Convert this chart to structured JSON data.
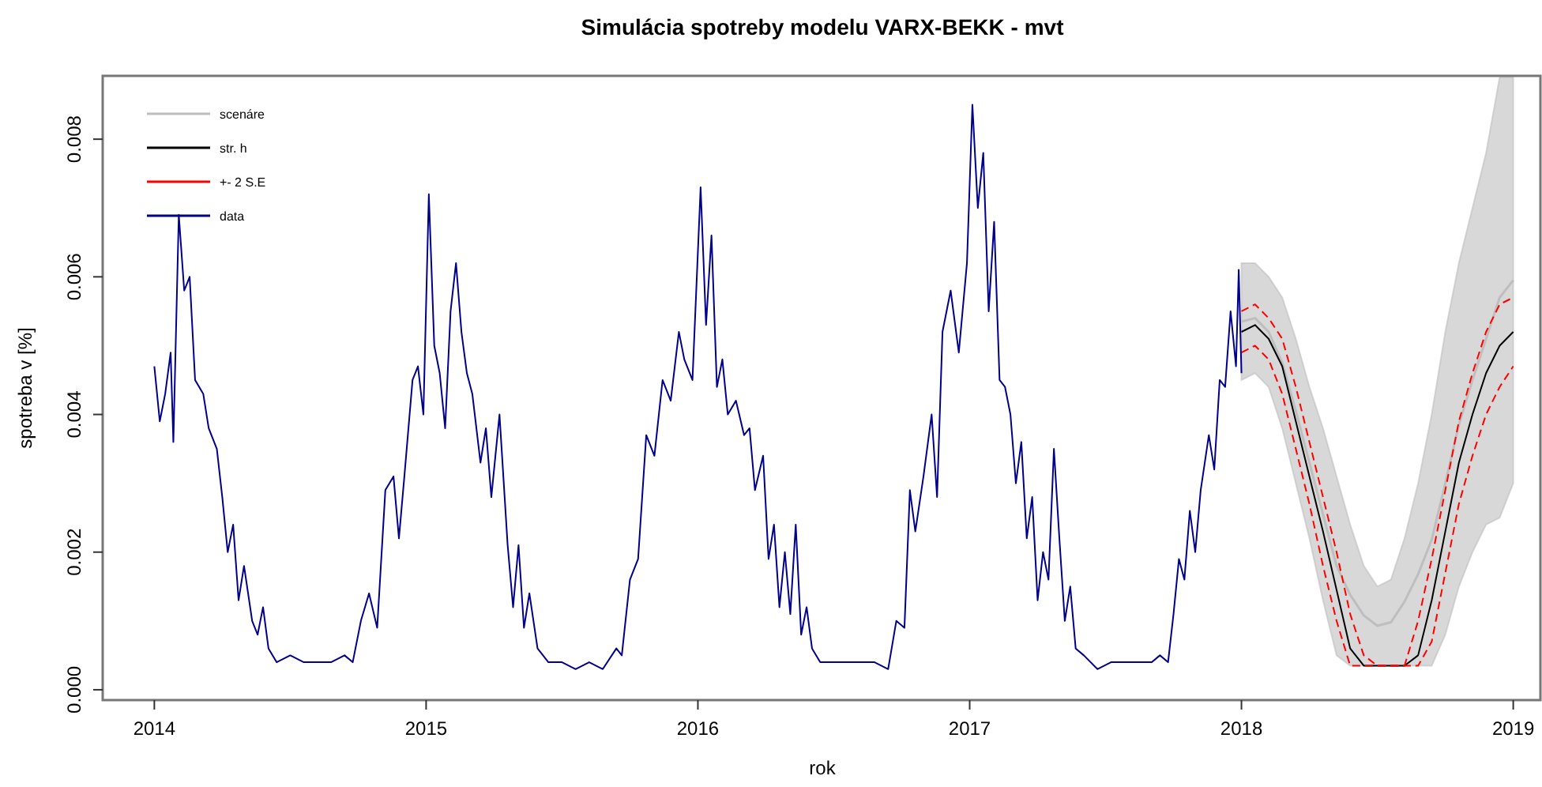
{
  "chart_data": {
    "type": "line",
    "title": "Simulácia spotreby modelu VARX-BEKK - mvt",
    "xlabel": "rok",
    "ylabel": "spotreba v [%]",
    "xlim": [
      2013.81,
      2019.1
    ],
    "xticks": [
      2014,
      2015,
      2016,
      2017,
      2018,
      2019
    ],
    "ylim": [
      -0.00015,
      0.00892
    ],
    "yticks": [
      {
        "value": 0,
        "label": "0.000"
      },
      {
        "value": 0.002,
        "label": "0.002"
      },
      {
        "value": 0.004,
        "label": "0.004"
      },
      {
        "value": 0.006,
        "label": "0.006"
      },
      {
        "value": 0.008,
        "label": "0.008"
      }
    ],
    "legend": "top left",
    "grid": false,
    "series": [
      {
        "name": "scenáre",
        "color": "#bebebe",
        "x": [
          2018.0,
          2018.05,
          2018.1,
          2018.15,
          2018.2,
          2018.25,
          2018.3,
          2018.35,
          2018.4,
          2018.45,
          2018.5,
          2018.55,
          2018.6,
          2018.65,
          2018.7,
          2018.75,
          2018.8,
          2018.85,
          2018.9,
          2018.95,
          2019.0
        ],
        "values": [
          0.00535,
          0.0054,
          0.0052,
          0.00475,
          0.00405,
          0.0033,
          0.00255,
          0.0018,
          0.00138,
          0.00108,
          0.00093,
          0.00098,
          0.00128,
          0.00168,
          0.00218,
          0.003,
          0.00385,
          0.0045,
          0.0051,
          0.0057,
          0.00595
        ],
        "lower": [
          0.0045,
          0.0046,
          0.0044,
          0.0038,
          0.003,
          0.0022,
          0.0013,
          0.0005,
          0.00035,
          0.00035,
          0.00035,
          0.00035,
          0.00035,
          0.00035,
          0.00035,
          0.0008,
          0.0015,
          0.002,
          0.0024,
          0.0025,
          0.003
        ],
        "upper": [
          0.0062,
          0.0062,
          0.006,
          0.0057,
          0.0051,
          0.0044,
          0.0038,
          0.0031,
          0.0024,
          0.0018,
          0.0015,
          0.0016,
          0.0022,
          0.003,
          0.004,
          0.0052,
          0.0062,
          0.007,
          0.0078,
          0.0089,
          0.0089
        ]
      },
      {
        "name": "str. h",
        "color": "#000000",
        "x": [
          2018.0,
          2018.05,
          2018.1,
          2018.15,
          2018.2,
          2018.25,
          2018.3,
          2018.35,
          2018.4,
          2018.45,
          2018.5,
          2018.55,
          2018.6,
          2018.65,
          2018.7,
          2018.75,
          2018.8,
          2018.85,
          2018.9,
          2018.95,
          2019.0
        ],
        "values": [
          0.0052,
          0.0053,
          0.0051,
          0.0047,
          0.0039,
          0.0031,
          0.0023,
          0.00145,
          0.0006,
          0.00035,
          0.00035,
          0.00035,
          0.00035,
          0.0005,
          0.0013,
          0.0023,
          0.0033,
          0.004,
          0.0046,
          0.005,
          0.0052
        ]
      },
      {
        "name": "+- 2 S.E",
        "color": "#ff0000",
        "line_style": "dashed",
        "x": [
          2018.0,
          2018.05,
          2018.1,
          2018.15,
          2018.2,
          2018.25,
          2018.3,
          2018.35,
          2018.4,
          2018.45,
          2018.5,
          2018.55,
          2018.6,
          2018.65,
          2018.7,
          2018.75,
          2018.8,
          2018.85,
          2018.9,
          2018.95,
          2019.0
        ],
        "values": [
          0.0055,
          0.0056,
          0.0054,
          0.0051,
          0.0044,
          0.0036,
          0.0028,
          0.002,
          0.0011,
          0.0005,
          0.00035,
          0.00035,
          0.00035,
          0.001,
          0.0019,
          0.0029,
          0.0039,
          0.0046,
          0.0052,
          0.0056,
          0.0057
        ]
      },
      {
        "color": "#ff0000",
        "line_style": "dashed",
        "x": [
          2018.0,
          2018.05,
          2018.1,
          2018.15,
          2018.2,
          2018.25,
          2018.3,
          2018.35,
          2018.4,
          2018.45,
          2018.5,
          2018.55,
          2018.6,
          2018.65,
          2018.7,
          2018.75,
          2018.8,
          2018.85,
          2018.9,
          2018.95,
          2019.0
        ],
        "values": [
          0.0049,
          0.005,
          0.0048,
          0.0043,
          0.0035,
          0.0027,
          0.0018,
          0.001,
          0.00035,
          0.00035,
          0.00035,
          0.00035,
          0.00035,
          0.00035,
          0.0007,
          0.0017,
          0.0027,
          0.0034,
          0.004,
          0.0044,
          0.0047
        ]
      },
      {
        "name": "data",
        "color": "#00008b",
        "x": [
          2014.0,
          2014.02,
          2014.04,
          2014.06,
          2014.07,
          2014.09,
          2014.11,
          2014.13,
          2014.15,
          2014.18,
          2014.2,
          2014.23,
          2014.25,
          2014.27,
          2014.29,
          2014.31,
          2014.33,
          2014.36,
          2014.38,
          2014.4,
          2014.42,
          2014.45,
          2014.5,
          2014.55,
          2014.6,
          2014.65,
          2014.7,
          2014.73,
          2014.76,
          2014.79,
          2014.82,
          2014.85,
          2014.88,
          2014.9,
          2014.92,
          2014.95,
          2014.97,
          2014.99,
          2015.01,
          2015.03,
          2015.05,
          2015.07,
          2015.09,
          2015.11,
          2015.13,
          2015.15,
          2015.17,
          2015.2,
          2015.22,
          2015.24,
          2015.27,
          2015.3,
          2015.32,
          2015.34,
          2015.36,
          2015.38,
          2015.41,
          2015.45,
          2015.5,
          2015.55,
          2015.6,
          2015.65,
          2015.7,
          2015.72,
          2015.75,
          2015.78,
          2015.81,
          2015.84,
          2015.87,
          2015.9,
          2015.93,
          2015.95,
          2015.98,
          2016.01,
          2016.03,
          2016.05,
          2016.07,
          2016.09,
          2016.11,
          2016.14,
          2016.17,
          2016.19,
          2016.21,
          2016.24,
          2016.26,
          2016.28,
          2016.3,
          2016.32,
          2016.34,
          2016.36,
          2016.38,
          2016.4,
          2016.42,
          2016.45,
          2016.5,
          2016.55,
          2016.6,
          2016.65,
          2016.7,
          2016.73,
          2016.76,
          2016.78,
          2016.8,
          2016.83,
          2016.86,
          2016.88,
          2016.9,
          2016.93,
          2016.96,
          2016.99,
          2017.01,
          2017.03,
          2017.05,
          2017.07,
          2017.09,
          2017.11,
          2017.13,
          2017.15,
          2017.17,
          2017.19,
          2017.21,
          2017.23,
          2017.25,
          2017.27,
          2017.29,
          2017.31,
          2017.33,
          2017.35,
          2017.37,
          2017.39,
          2017.42,
          2017.47,
          2017.52,
          2017.57,
          2017.62,
          2017.67,
          2017.7,
          2017.73,
          2017.75,
          2017.77,
          2017.79,
          2017.81,
          2017.83,
          2017.85,
          2017.88,
          2017.9,
          2017.92,
          2017.94,
          2017.96,
          2017.98,
          2017.99,
          2018.0
        ],
        "values": [
          0.0047,
          0.0039,
          0.0043,
          0.0049,
          0.0036,
          0.0069,
          0.0058,
          0.006,
          0.0045,
          0.0043,
          0.0038,
          0.0035,
          0.0028,
          0.002,
          0.0024,
          0.0013,
          0.0018,
          0.001,
          0.0008,
          0.0012,
          0.0006,
          0.0004,
          0.0005,
          0.0004,
          0.0004,
          0.0004,
          0.0005,
          0.0004,
          0.001,
          0.0014,
          0.0009,
          0.0029,
          0.0031,
          0.0022,
          0.0031,
          0.0045,
          0.0047,
          0.004,
          0.0072,
          0.005,
          0.0046,
          0.0038,
          0.0055,
          0.0062,
          0.0052,
          0.0046,
          0.0043,
          0.0033,
          0.0038,
          0.0028,
          0.004,
          0.0021,
          0.0012,
          0.0021,
          0.0009,
          0.0014,
          0.0006,
          0.0004,
          0.0004,
          0.0003,
          0.0004,
          0.0003,
          0.0006,
          0.0005,
          0.0016,
          0.0019,
          0.0037,
          0.0034,
          0.0045,
          0.0042,
          0.0052,
          0.0048,
          0.0045,
          0.0073,
          0.0053,
          0.0066,
          0.0044,
          0.0048,
          0.004,
          0.0042,
          0.0037,
          0.0038,
          0.0029,
          0.0034,
          0.0019,
          0.0024,
          0.0012,
          0.002,
          0.0011,
          0.0024,
          0.0008,
          0.0012,
          0.0006,
          0.0004,
          0.0004,
          0.0004,
          0.0004,
          0.0004,
          0.0003,
          0.001,
          0.0009,
          0.0029,
          0.0023,
          0.0031,
          0.004,
          0.0028,
          0.0052,
          0.0058,
          0.0049,
          0.0062,
          0.0085,
          0.007,
          0.0078,
          0.0055,
          0.0068,
          0.0045,
          0.0044,
          0.004,
          0.003,
          0.0036,
          0.0022,
          0.0028,
          0.0013,
          0.002,
          0.0016,
          0.0035,
          0.0022,
          0.001,
          0.0015,
          0.0006,
          0.0005,
          0.0003,
          0.0004,
          0.0004,
          0.0004,
          0.0004,
          0.0005,
          0.0004,
          0.0011,
          0.0019,
          0.0016,
          0.0026,
          0.002,
          0.0029,
          0.0037,
          0.0032,
          0.0045,
          0.0044,
          0.0055,
          0.0047,
          0.0061,
          0.0046
        ]
      }
    ]
  }
}
